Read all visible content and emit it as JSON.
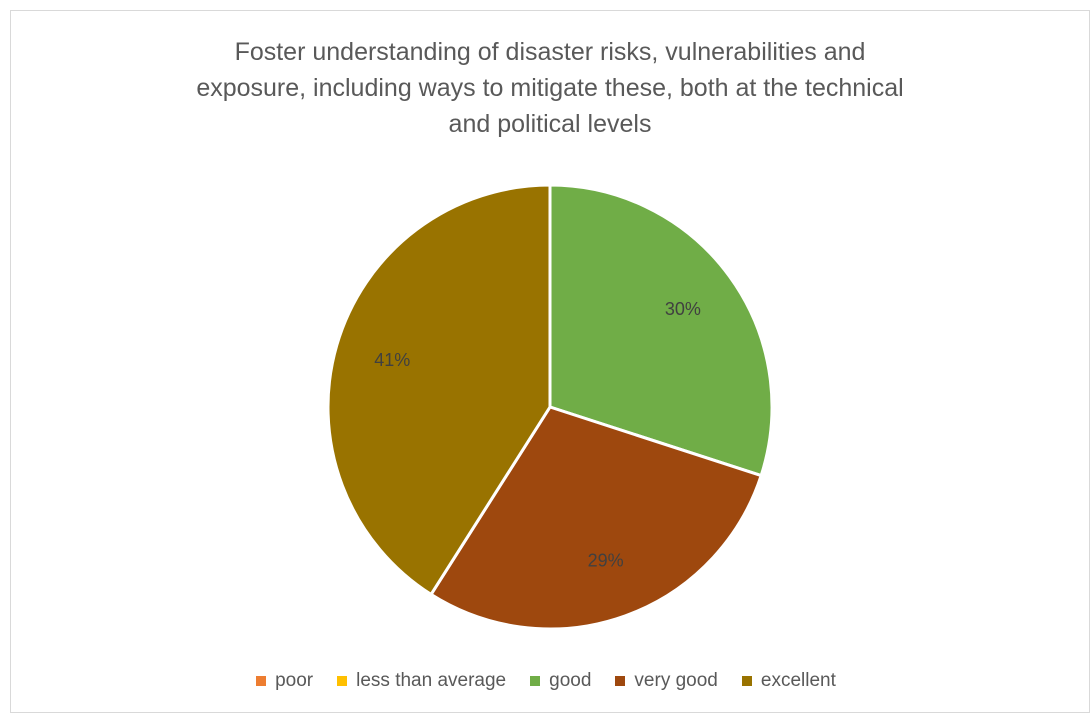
{
  "chart_data": {
    "type": "pie",
    "title_lines": [
      "Foster understanding of disaster risks, vulnerabilities and",
      "exposure, including ways to mitigate these, both at the technical",
      "and political levels"
    ],
    "categories": [
      "poor",
      "less than average",
      "good",
      "very good",
      "excellent"
    ],
    "values": [
      0,
      0,
      30,
      29,
      41
    ],
    "labels": [
      "",
      "",
      "30%",
      "29%",
      "41%"
    ],
    "colors": [
      "#ed7d31",
      "#ffc000",
      "#70ad47",
      "#9e480e",
      "#997300"
    ],
    "legend_position": "bottom"
  }
}
